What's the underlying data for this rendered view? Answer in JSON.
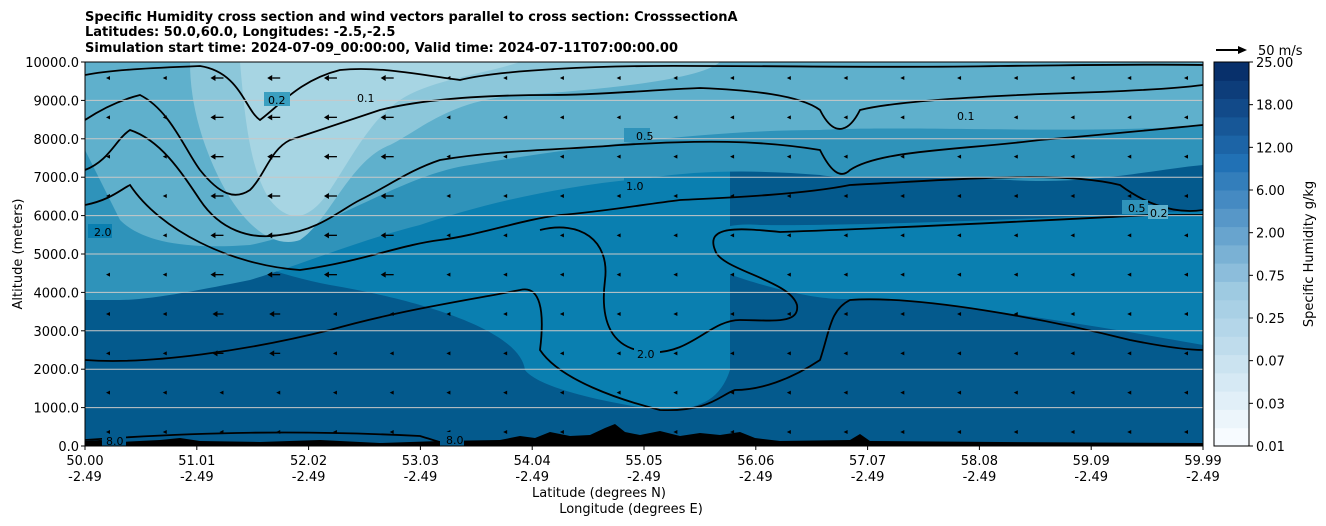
{
  "chart_data": {
    "type": "contour",
    "title_lines": [
      "Specific Humidity cross section and wind vectors parallel to cross section: CrosssectionA",
      "Latitudes: 50.0,60.0, Longitudes: -2.5,-2.5",
      "Simulation start time: 2024-07-09_00:00:00, Valid time: 2024-07-11T07:00:00.00"
    ],
    "ylabel": "Altitude (meters)",
    "xlabel_lat": "Latitude (degrees N)",
    "xlabel_lon": "Longitude (degrees E)",
    "ylim": [
      0,
      10000
    ],
    "y_ticks": [
      {
        "value": 0,
        "label": "0.0"
      },
      {
        "value": 1000,
        "label": "1000.0"
      },
      {
        "value": 2000,
        "label": "2000.0"
      },
      {
        "value": 3000,
        "label": "3000.0"
      },
      {
        "value": 4000,
        "label": "4000.0"
      },
      {
        "value": 5000,
        "label": "5000.0"
      },
      {
        "value": 6000,
        "label": "6000.0"
      },
      {
        "value": 7000,
        "label": "7000.0"
      },
      {
        "value": 8000,
        "label": "8000.0"
      },
      {
        "value": 9000,
        "label": "9000.0"
      },
      {
        "value": 10000,
        "label": "10000.0"
      }
    ],
    "x_ticks": [
      {
        "lat": "50.00",
        "lon": "-2.49"
      },
      {
        "lat": "51.01",
        "lon": "-2.49"
      },
      {
        "lat": "52.02",
        "lon": "-2.49"
      },
      {
        "lat": "53.03",
        "lon": "-2.49"
      },
      {
        "lat": "54.04",
        "lon": "-2.49"
      },
      {
        "lat": "55.05",
        "lon": "-2.49"
      },
      {
        "lat": "56.06",
        "lon": "-2.49"
      },
      {
        "lat": "57.07",
        "lon": "-2.49"
      },
      {
        "lat": "58.08",
        "lon": "-2.49"
      },
      {
        "lat": "59.09",
        "lon": "-2.49"
      },
      {
        "lat": "59.99",
        "lon": "-2.49"
      }
    ],
    "colorbar": {
      "label": "Specific Humidity g/kg",
      "tick_labels": [
        "0.01",
        "0.03",
        "0.07",
        "0.25",
        "0.75",
        "2.00",
        "6.00",
        "12.00",
        "18.00",
        "25.00"
      ],
      "levels_count": 21
    },
    "contour_labels": [
      "0.1",
      "0.2",
      "0.5",
      "1.0",
      "2.0",
      "8.0"
    ],
    "quiver_key": "50 m/s",
    "colors": {
      "fill_low": "#f7fbff",
      "fill_mid": "#3a9fc0",
      "fill_high": "#08306b",
      "terrain": "#000000"
    }
  }
}
